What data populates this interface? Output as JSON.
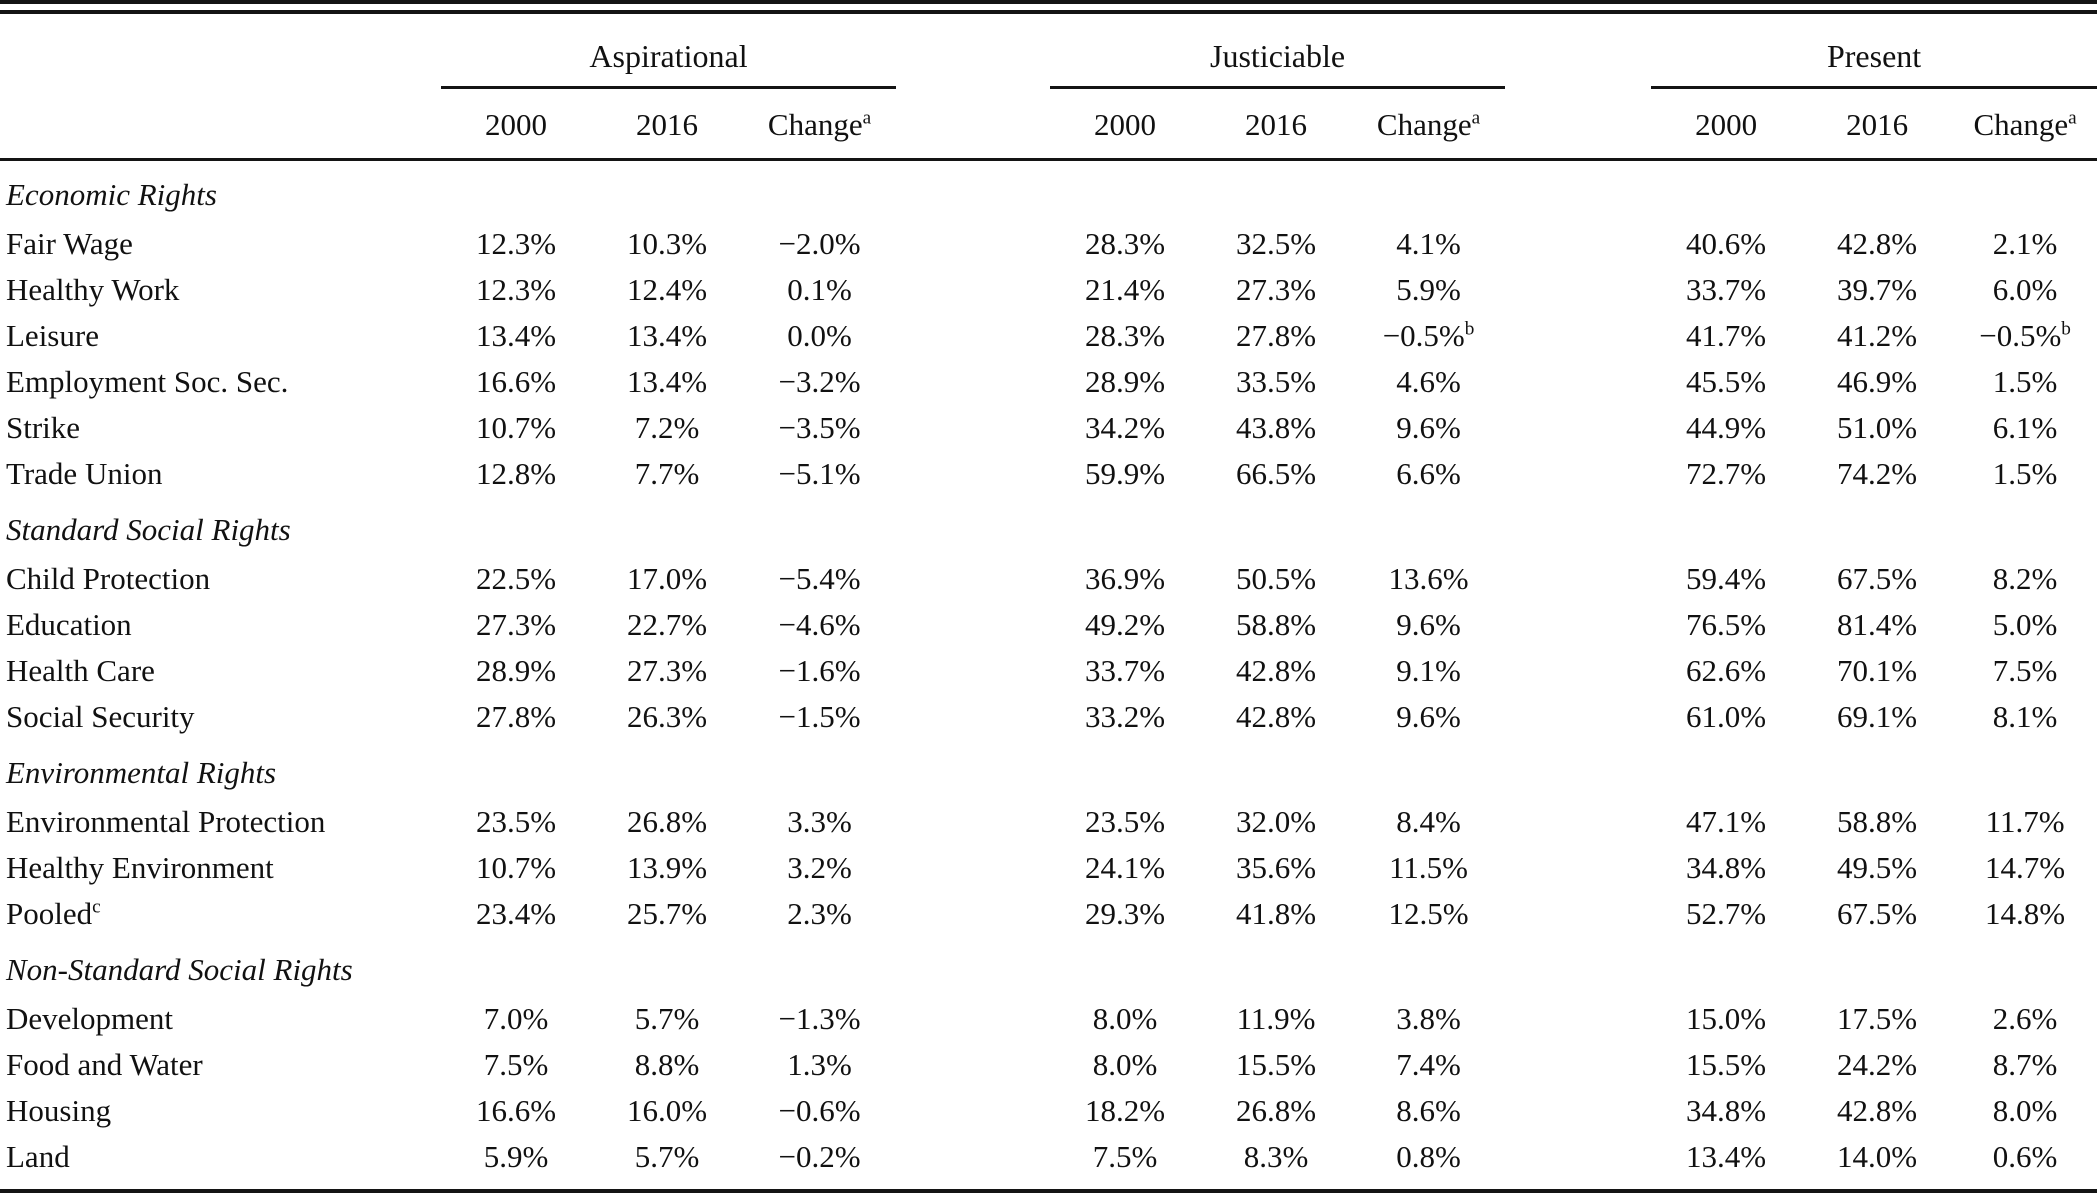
{
  "header": {
    "groups": [
      {
        "label": "Aspirational"
      },
      {
        "label": "Justiciable"
      },
      {
        "label": "Present"
      }
    ],
    "col_2000": "2000",
    "col_2016": "2016",
    "col_change": "Change",
    "col_change_sup": "a"
  },
  "sections": [
    {
      "title": "Economic Rights",
      "rows": [
        {
          "label": "Fair Wage",
          "values": [
            "12.3%",
            "10.3%",
            "−2.0%",
            "28.3%",
            "32.5%",
            "4.1%",
            "40.6%",
            "42.8%",
            "2.1%"
          ]
        },
        {
          "label": "Healthy Work",
          "values": [
            "12.3%",
            "12.4%",
            "0.1%",
            "21.4%",
            "27.3%",
            "5.9%",
            "33.7%",
            "39.7%",
            "6.0%"
          ]
        },
        {
          "label": "Leisure",
          "values": [
            "13.4%",
            "13.4%",
            "0.0%",
            "28.3%",
            "27.8%",
            "−0.5%^b",
            "41.7%",
            "41.2%",
            "−0.5%^b"
          ]
        },
        {
          "label": "Employment Soc. Sec.",
          "values": [
            "16.6%",
            "13.4%",
            "−3.2%",
            "28.9%",
            "33.5%",
            "4.6%",
            "45.5%",
            "46.9%",
            "1.5%"
          ]
        },
        {
          "label": "Strike",
          "values": [
            "10.7%",
            "7.2%",
            "−3.5%",
            "34.2%",
            "43.8%",
            "9.6%",
            "44.9%",
            "51.0%",
            "6.1%"
          ]
        },
        {
          "label": "Trade Union",
          "values": [
            "12.8%",
            "7.7%",
            "−5.1%",
            "59.9%",
            "66.5%",
            "6.6%",
            "72.7%",
            "74.2%",
            "1.5%"
          ]
        }
      ]
    },
    {
      "title": "Standard Social Rights",
      "rows": [
        {
          "label": "Child Protection",
          "values": [
            "22.5%",
            "17.0%",
            "−5.4%",
            "36.9%",
            "50.5%",
            "13.6%",
            "59.4%",
            "67.5%",
            "8.2%"
          ]
        },
        {
          "label": "Education",
          "values": [
            "27.3%",
            "22.7%",
            "−4.6%",
            "49.2%",
            "58.8%",
            "9.6%",
            "76.5%",
            "81.4%",
            "5.0%"
          ]
        },
        {
          "label": "Health Care",
          "values": [
            "28.9%",
            "27.3%",
            "−1.6%",
            "33.7%",
            "42.8%",
            "9.1%",
            "62.6%",
            "70.1%",
            "7.5%"
          ]
        },
        {
          "label": "Social Security",
          "values": [
            "27.8%",
            "26.3%",
            "−1.5%",
            "33.2%",
            "42.8%",
            "9.6%",
            "61.0%",
            "69.1%",
            "8.1%"
          ]
        }
      ]
    },
    {
      "title": "Environmental Rights",
      "rows": [
        {
          "label": "Environmental Protection",
          "values": [
            "23.5%",
            "26.8%",
            "3.3%",
            "23.5%",
            "32.0%",
            "8.4%",
            "47.1%",
            "58.8%",
            "11.7%"
          ]
        },
        {
          "label": "Healthy Environment",
          "values": [
            "10.7%",
            "13.9%",
            "3.2%",
            "24.1%",
            "35.6%",
            "11.5%",
            "34.8%",
            "49.5%",
            "14.7%"
          ]
        },
        {
          "label": "Pooled^c",
          "values": [
            "23.4%",
            "25.7%",
            "2.3%",
            "29.3%",
            "41.8%",
            "12.5%",
            "52.7%",
            "67.5%",
            "14.8%"
          ]
        }
      ]
    },
    {
      "title": "Non-Standard Social Rights",
      "rows": [
        {
          "label": "Development",
          "values": [
            "7.0%",
            "5.7%",
            "−1.3%",
            "8.0%",
            "11.9%",
            "3.8%",
            "15.0%",
            "17.5%",
            "2.6%"
          ]
        },
        {
          "label": "Food and Water",
          "values": [
            "7.5%",
            "8.8%",
            "1.3%",
            "8.0%",
            "15.5%",
            "7.4%",
            "15.5%",
            "24.2%",
            "8.7%"
          ]
        },
        {
          "label": "Housing",
          "values": [
            "16.6%",
            "16.0%",
            "−0.6%",
            "18.2%",
            "26.8%",
            "8.6%",
            "34.8%",
            "42.8%",
            "8.0%"
          ]
        },
        {
          "label": "Land",
          "values": [
            "5.9%",
            "5.7%",
            "−0.2%",
            "7.5%",
            "8.3%",
            "0.8%",
            "13.4%",
            "14.0%",
            "0.6%"
          ]
        }
      ]
    }
  ]
}
